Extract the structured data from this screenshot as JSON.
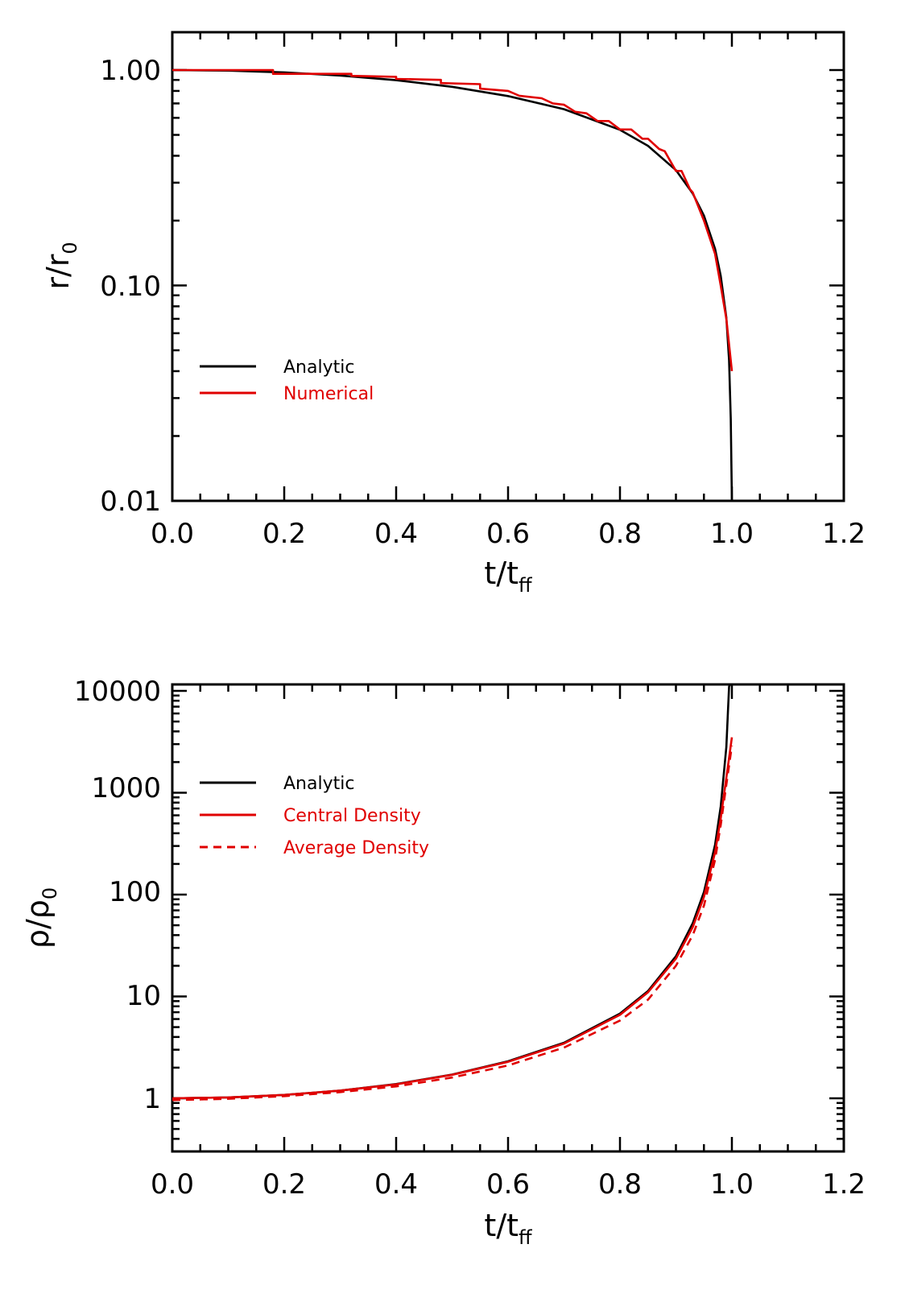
{
  "chart_data": [
    {
      "type": "line",
      "yscale": "log",
      "xlim": [
        0.0,
        1.2
      ],
      "ylim": [
        0.01,
        1.6
      ],
      "xticks": [
        "0.0",
        "0.2",
        "0.4",
        "0.6",
        "0.8",
        "1.0",
        "1.2"
      ],
      "yticks": [
        "1.00",
        "0.10",
        "0.01"
      ],
      "xlabel": {
        "main": "t/t",
        "sub": "ff"
      },
      "ylabel": {
        "main": "r/r",
        "sub": "0"
      },
      "legend_placement": "left",
      "series": [
        {
          "name": "Analytic",
          "color": "#000000",
          "style": "solid",
          "x": [
            0.0,
            0.1,
            0.2,
            0.3,
            0.4,
            0.5,
            0.6,
            0.7,
            0.8,
            0.85,
            0.9,
            0.93,
            0.95,
            0.97,
            0.98,
            0.99,
            0.995,
            0.998,
            1.0
          ],
          "y": [
            1.0,
            0.994,
            0.975,
            0.943,
            0.897,
            0.836,
            0.757,
            0.658,
            0.528,
            0.445,
            0.343,
            0.267,
            0.211,
            0.148,
            0.111,
            0.071,
            0.045,
            0.024,
            0.01
          ]
        },
        {
          "name": "Numerical",
          "color": "#e00000",
          "style": "solid",
          "x": [
            0.0,
            0.18,
            0.18,
            0.32,
            0.32,
            0.4,
            0.4,
            0.48,
            0.48,
            0.55,
            0.55,
            0.6,
            0.62,
            0.66,
            0.68,
            0.7,
            0.72,
            0.74,
            0.76,
            0.78,
            0.8,
            0.82,
            0.84,
            0.85,
            0.87,
            0.88,
            0.9,
            0.91,
            0.925,
            0.93,
            0.95,
            0.97,
            0.98,
            0.99,
            1.0
          ],
          "y": [
            1.0,
            1.0,
            0.96,
            0.96,
            0.94,
            0.93,
            0.91,
            0.9,
            0.87,
            0.86,
            0.82,
            0.8,
            0.76,
            0.74,
            0.7,
            0.69,
            0.64,
            0.63,
            0.58,
            0.58,
            0.53,
            0.53,
            0.48,
            0.48,
            0.43,
            0.42,
            0.34,
            0.34,
            0.28,
            0.27,
            0.2,
            0.14,
            0.1,
            0.07,
            0.04
          ]
        }
      ]
    },
    {
      "type": "line",
      "yscale": "log",
      "xlim": [
        0.0,
        1.2
      ],
      "ylim": [
        0.3,
        12000
      ],
      "xticks": [
        "0.0",
        "0.2",
        "0.4",
        "0.6",
        "0.8",
        "1.0",
        "1.2"
      ],
      "yticks": [
        "10000",
        "1000",
        "100",
        "10",
        "1"
      ],
      "xlabel": {
        "main": "t/t",
        "sub": "ff"
      },
      "ylabel": {
        "main": "ρ/ρ",
        "sub": "0"
      },
      "legend_placement": "top-left",
      "series": [
        {
          "name": "Analytic",
          "color": "#000000",
          "style": "solid",
          "x": [
            0.0,
            0.1,
            0.2,
            0.3,
            0.4,
            0.5,
            0.6,
            0.7,
            0.8,
            0.85,
            0.9,
            0.93,
            0.95,
            0.97,
            0.98,
            0.99,
            0.995,
            0.998,
            1.0
          ],
          "y": [
            1.0,
            1.02,
            1.08,
            1.19,
            1.38,
            1.71,
            2.31,
            3.51,
            6.79,
            11.3,
            24.8,
            52.4,
            106,
            308,
            730,
            2800,
            11000,
            12000,
            12000
          ]
        },
        {
          "name": "Central Density",
          "color": "#e00000",
          "style": "solid",
          "x": [
            0.0,
            0.1,
            0.2,
            0.3,
            0.4,
            0.5,
            0.6,
            0.7,
            0.8,
            0.85,
            0.9,
            0.93,
            0.95,
            0.97,
            0.98,
            0.99,
            1.0
          ],
          "y": [
            1.0,
            1.02,
            1.08,
            1.19,
            1.37,
            1.7,
            2.28,
            3.45,
            6.6,
            11.0,
            23.5,
            48,
            95,
            260,
            560,
            1400,
            3500
          ]
        },
        {
          "name": "Average Density",
          "color": "#e00000",
          "style": "dashed",
          "x": [
            0.0,
            0.1,
            0.2,
            0.3,
            0.4,
            0.5,
            0.6,
            0.7,
            0.8,
            0.85,
            0.9,
            0.93,
            0.95,
            0.97,
            0.98,
            0.99,
            1.0
          ],
          "y": [
            0.96,
            0.99,
            1.05,
            1.15,
            1.31,
            1.6,
            2.1,
            3.15,
            5.8,
            9.3,
            20,
            40,
            78,
            220,
            480,
            1200,
            2900
          ]
        }
      ]
    }
  ]
}
